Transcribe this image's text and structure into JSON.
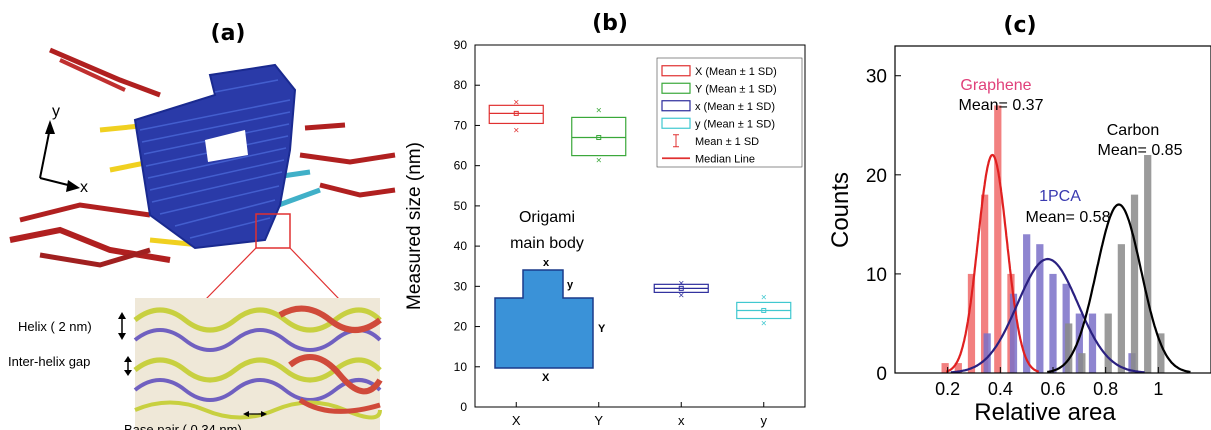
{
  "panels": {
    "a": {
      "label": "(a)",
      "axis_y": "y",
      "axis_x": "x",
      "annotations": {
        "helix": "Helix ( 2 nm)",
        "gap": "Inter-helix gap",
        "base_pair": "Base pair ( 0.34 nm)"
      }
    },
    "b": {
      "label": "(b)"
    },
    "c": {
      "label": "(c)"
    }
  },
  "colors": {
    "X": "#e03030",
    "Y": "#3aa83a",
    "x_small": "#2c2c9c",
    "y_small": "#40c8d0",
    "graphene": "#f06a6a",
    "pca": "#7a70c8",
    "carbon": "#8a8a8a",
    "graphene_text": "#e0407a",
    "pca_text": "#3a3ab0"
  },
  "chart_data": [
    {
      "type": "box",
      "title": "",
      "ylabel": "Measured size (nm)",
      "ylim": [
        0,
        90
      ],
      "yticks": [
        0,
        10,
        20,
        30,
        40,
        50,
        60,
        70,
        80,
        90
      ],
      "categories": [
        "X",
        "Y",
        "x",
        "y"
      ],
      "series": [
        {
          "name": "X (Mean ± 1 SD)",
          "q1": 70.5,
          "median": 73,
          "q3": 75,
          "mean": 73,
          "min": 69,
          "max": 76
        },
        {
          "name": "Y (Mean ± 1 SD)",
          "q1": 62.5,
          "median": 67,
          "q3": 72,
          "mean": 67,
          "min": 61.5,
          "max": 74
        },
        {
          "name": "x (Mean ± 1 SD)",
          "q1": 28.5,
          "median": 29.5,
          "q3": 30.5,
          "mean": 29.5,
          "min": 28,
          "max": 31
        },
        {
          "name": "y (Mean ± 1 SD)",
          "q1": 22,
          "median": 24,
          "q3": 26,
          "mean": 24,
          "min": 21,
          "max": 27.5
        }
      ],
      "legend": [
        "X (Mean ± 1 SD)",
        "Y (Mean ± 1 SD)",
        "x (Mean ± 1 SD)",
        "y (Mean ± 1 SD)",
        "Mean ± 1 SD",
        "Median Line"
      ],
      "legend_position": "top-right",
      "inset": {
        "title": "Origami main body",
        "labels": [
          "x",
          "y",
          "Y",
          "X"
        ]
      }
    },
    {
      "type": "bar",
      "title": "",
      "xlabel": "Relative area",
      "ylabel": "Counts",
      "xlim": [
        0,
        1.2
      ],
      "ylim": [
        0,
        33
      ],
      "xticks": [
        0.2,
        0.4,
        0.6,
        0.8,
        1
      ],
      "xtick_labels": [
        "0.2",
        "0.4",
        "0.6",
        "0.8",
        "1"
      ],
      "yticks": [
        0,
        10,
        20,
        30
      ],
      "bar_width": 0.05,
      "series": [
        {
          "name": "Graphene",
          "x": [
            0.2,
            0.25,
            0.3,
            0.35,
            0.4,
            0.45
          ],
          "values": [
            1,
            1,
            10,
            18,
            27,
            10
          ]
        },
        {
          "name": "1PCA",
          "x": [
            0.35,
            0.45,
            0.5,
            0.55,
            0.6,
            0.65,
            0.7,
            0.75,
            0.9
          ],
          "values": [
            4,
            8,
            14,
            13,
            10,
            9,
            6,
            6,
            2
          ]
        },
        {
          "name": "Carbon",
          "x": [
            0.65,
            0.7,
            0.8,
            0.85,
            0.9,
            0.95,
            1.0
          ],
          "values": [
            5,
            2,
            6,
            13,
            18,
            22,
            4
          ]
        }
      ],
      "fits": [
        {
          "name": "Graphene",
          "mean": 0.37,
          "sd": 0.055,
          "peak": 22
        },
        {
          "name": "1PCA",
          "mean": 0.58,
          "sd": 0.115,
          "peak": 11.5
        },
        {
          "name": "Carbon",
          "mean": 0.85,
          "sd": 0.085,
          "peak": 17
        }
      ],
      "annotations": [
        {
          "name": "Graphene",
          "text": "Mean= 0.37"
        },
        {
          "name": "1PCA",
          "text": "Mean= 0.58"
        },
        {
          "name": "Carbon",
          "text": "Mean= 0.85"
        }
      ]
    }
  ]
}
